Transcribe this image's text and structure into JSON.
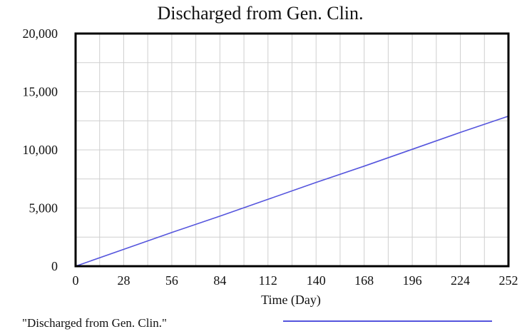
{
  "chart_data": {
    "type": "line",
    "title": "Discharged from Gen. Clin.",
    "xlabel": "Time (Day)",
    "ylabel": "",
    "xlim": [
      0,
      252
    ],
    "ylim": [
      0,
      20000
    ],
    "x_ticks": [
      0,
      28,
      56,
      84,
      112,
      140,
      168,
      196,
      224,
      252
    ],
    "x_tick_labels": [
      "0",
      "28",
      "56",
      "84",
      "112",
      "140",
      "168",
      "196",
      "224",
      "252"
    ],
    "y_ticks": [
      0,
      5000,
      10000,
      15000,
      20000
    ],
    "y_tick_labels": [
      "0",
      "5,000",
      "10,000",
      "15,000",
      "20,000"
    ],
    "x_grid_step": 14,
    "y_grid_step": 2500,
    "grid": true,
    "legend_position": "bottom",
    "series": [
      {
        "name": "\"Discharged from Gen. Clin.\"",
        "color": "#5555dd",
        "x": [
          0,
          28,
          56,
          84,
          112,
          140,
          168,
          196,
          224,
          252
        ],
        "y": [
          0,
          1450,
          2900,
          4300,
          5750,
          7200,
          8600,
          10050,
          11500,
          12900
        ]
      }
    ]
  }
}
